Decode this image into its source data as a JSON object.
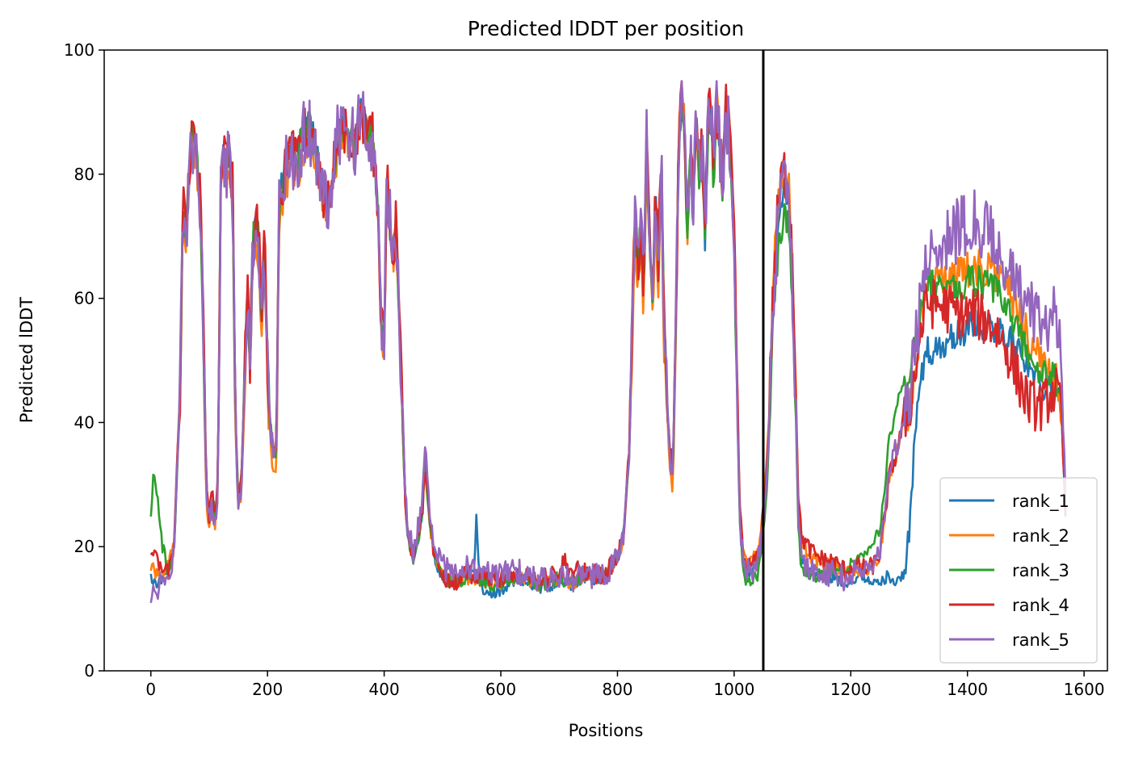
{
  "chart_data": {
    "type": "line",
    "title": "Predicted lDDT per position",
    "xlabel": "Positions",
    "ylabel": "Predicted lDDT",
    "xlim": [
      -80,
      1640
    ],
    "ylim": [
      0,
      100
    ],
    "xticks": [
      0,
      200,
      400,
      600,
      800,
      1000,
      1200,
      1400,
      1600
    ],
    "yticks": [
      0,
      20,
      40,
      60,
      80,
      100
    ],
    "grid": false,
    "legend_position": "lower-right",
    "vline_x": 1050,
    "base_profile": [
      [
        0,
        15
      ],
      [
        10,
        14
      ],
      [
        20,
        15
      ],
      [
        30,
        16
      ],
      [
        40,
        20
      ],
      [
        50,
        45
      ],
      [
        55,
        75
      ],
      [
        60,
        70
      ],
      [
        70,
        86
      ],
      [
        75,
        86
      ],
      [
        80,
        80
      ],
      [
        85,
        75
      ],
      [
        90,
        55
      ],
      [
        95,
        30
      ],
      [
        100,
        25
      ],
      [
        105,
        28
      ],
      [
        110,
        25
      ],
      [
        115,
        30
      ],
      [
        120,
        80
      ],
      [
        125,
        84
      ],
      [
        130,
        82
      ],
      [
        135,
        84
      ],
      [
        140,
        78
      ],
      [
        145,
        40
      ],
      [
        150,
        28
      ],
      [
        155,
        30
      ],
      [
        160,
        45
      ],
      [
        165,
        62
      ],
      [
        170,
        50
      ],
      [
        175,
        70
      ],
      [
        180,
        72
      ],
      [
        185,
        70
      ],
      [
        190,
        55
      ],
      [
        195,
        70
      ],
      [
        200,
        50
      ],
      [
        205,
        40
      ],
      [
        210,
        35
      ],
      [
        215,
        35
      ],
      [
        220,
        75
      ],
      [
        230,
        82
      ],
      [
        240,
        84
      ],
      [
        250,
        82
      ],
      [
        260,
        86
      ],
      [
        270,
        88
      ],
      [
        280,
        86
      ],
      [
        290,
        80
      ],
      [
        300,
        75
      ],
      [
        310,
        78
      ],
      [
        320,
        86
      ],
      [
        330,
        88
      ],
      [
        340,
        86
      ],
      [
        350,
        85
      ],
      [
        360,
        90
      ],
      [
        370,
        87
      ],
      [
        380,
        86
      ],
      [
        385,
        80
      ],
      [
        390,
        72
      ],
      [
        395,
        55
      ],
      [
        400,
        52
      ],
      [
        405,
        80
      ],
      [
        410,
        72
      ],
      [
        415,
        66
      ],
      [
        420,
        72
      ],
      [
        425,
        60
      ],
      [
        430,
        45
      ],
      [
        435,
        30
      ],
      [
        440,
        22
      ],
      [
        450,
        18
      ],
      [
        460,
        22
      ],
      [
        465,
        25
      ],
      [
        470,
        33
      ],
      [
        475,
        28
      ],
      [
        480,
        22
      ],
      [
        490,
        17
      ],
      [
        500,
        15
      ],
      [
        520,
        14
      ],
      [
        540,
        15
      ],
      [
        560,
        15
      ],
      [
        580,
        14
      ],
      [
        600,
        14
      ],
      [
        620,
        15
      ],
      [
        640,
        15
      ],
      [
        660,
        14
      ],
      [
        680,
        14
      ],
      [
        700,
        15
      ],
      [
        720,
        14
      ],
      [
        740,
        15
      ],
      [
        760,
        15
      ],
      [
        780,
        15
      ],
      [
        790,
        17
      ],
      [
        800,
        18
      ],
      [
        810,
        22
      ],
      [
        815,
        28
      ],
      [
        820,
        35
      ],
      [
        825,
        55
      ],
      [
        830,
        72
      ],
      [
        835,
        65
      ],
      [
        840,
        72
      ],
      [
        845,
        60
      ],
      [
        850,
        85
      ],
      [
        855,
        70
      ],
      [
        860,
        60
      ],
      [
        865,
        78
      ],
      [
        870,
        65
      ],
      [
        875,
        85
      ],
      [
        880,
        55
      ],
      [
        885,
        45
      ],
      [
        890,
        35
      ],
      [
        895,
        32
      ],
      [
        900,
        55
      ],
      [
        905,
        85
      ],
      [
        910,
        92
      ],
      [
        915,
        88
      ],
      [
        920,
        70
      ],
      [
        925,
        85
      ],
      [
        930,
        75
      ],
      [
        935,
        90
      ],
      [
        940,
        80
      ],
      [
        945,
        85
      ],
      [
        950,
        70
      ],
      [
        955,
        88
      ],
      [
        960,
        90
      ],
      [
        965,
        80
      ],
      [
        970,
        92
      ],
      [
        975,
        85
      ],
      [
        980,
        78
      ],
      [
        985,
        90
      ],
      [
        990,
        88
      ],
      [
        995,
        80
      ],
      [
        1000,
        70
      ],
      [
        1005,
        45
      ],
      [
        1010,
        25
      ],
      [
        1015,
        18
      ],
      [
        1020,
        16
      ],
      [
        1030,
        16
      ],
      [
        1040,
        17
      ],
      [
        1045,
        20
      ],
      [
        1055,
        30
      ],
      [
        1060,
        40
      ],
      [
        1065,
        55
      ],
      [
        1070,
        65
      ],
      [
        1075,
        72
      ],
      [
        1080,
        76
      ],
      [
        1085,
        78
      ],
      [
        1090,
        76
      ],
      [
        1095,
        74
      ],
      [
        1100,
        62
      ],
      [
        1105,
        45
      ],
      [
        1110,
        25
      ],
      [
        1115,
        18
      ],
      [
        1130,
        16
      ],
      [
        1150,
        15
      ],
      [
        1170,
        15
      ],
      [
        1190,
        14
      ],
      [
        1210,
        15
      ],
      [
        1230,
        15
      ],
      [
        1240,
        16
      ],
      [
        1250,
        18
      ],
      [
        1260,
        25
      ],
      [
        1265,
        30
      ],
      [
        1270,
        32
      ],
      [
        1280,
        35
      ],
      [
        1290,
        40
      ],
      [
        1300,
        42
      ],
      [
        1310,
        48
      ],
      [
        1320,
        55
      ],
      [
        1330,
        60
      ],
      [
        1350,
        60
      ],
      [
        1370,
        60
      ],
      [
        1390,
        60
      ],
      [
        1410,
        61
      ],
      [
        1430,
        60
      ],
      [
        1450,
        59
      ],
      [
        1470,
        56
      ],
      [
        1490,
        52
      ],
      [
        1510,
        48
      ],
      [
        1530,
        46
      ],
      [
        1545,
        47
      ],
      [
        1555,
        46
      ],
      [
        1562,
        40
      ],
      [
        1566,
        30
      ],
      [
        1568,
        25
      ]
    ],
    "series": [
      {
        "name": "rank_1",
        "color": "#1f77b4",
        "offsets": [
          [
            0,
            0
          ],
          [
            400,
            0
          ],
          [
            500,
            0
          ],
          [
            555,
            1
          ],
          [
            558,
            10
          ],
          [
            562,
            2
          ],
          [
            570,
            -2
          ],
          [
            600,
            -1
          ],
          [
            800,
            0
          ],
          [
            1230,
            0
          ],
          [
            1240,
            -2
          ],
          [
            1250,
            -4
          ],
          [
            1260,
            -10
          ],
          [
            1270,
            -18
          ],
          [
            1280,
            -20
          ],
          [
            1290,
            -25
          ],
          [
            1300,
            -20
          ],
          [
            1310,
            -10
          ],
          [
            1320,
            -8
          ],
          [
            1340,
            -9
          ],
          [
            1380,
            -6
          ],
          [
            1450,
            -4
          ],
          [
            1500,
            0
          ],
          [
            1568,
            0
          ]
        ],
        "noise_amp": 1.5
      },
      {
        "name": "rank_2",
        "color": "#ff7f0e",
        "offsets": [
          [
            0,
            2
          ],
          [
            100,
            -2
          ],
          [
            150,
            -2
          ],
          [
            200,
            -4
          ],
          [
            400,
            0
          ],
          [
            800,
            0
          ],
          [
            880,
            -5
          ],
          [
            895,
            -3
          ],
          [
            900,
            0
          ],
          [
            1060,
            2
          ],
          [
            1100,
            3
          ],
          [
            1300,
            0
          ],
          [
            1350,
            3
          ],
          [
            1400,
            4
          ],
          [
            1450,
            5
          ],
          [
            1500,
            5
          ],
          [
            1568,
            0
          ]
        ],
        "noise_amp": 2.0
      },
      {
        "name": "rank_3",
        "color": "#2ca02c",
        "offsets": [
          [
            0,
            10
          ],
          [
            5,
            18
          ],
          [
            10,
            15
          ],
          [
            20,
            5
          ],
          [
            30,
            0
          ],
          [
            100,
            0
          ],
          [
            400,
            0
          ],
          [
            800,
            0
          ],
          [
            1060,
            -2
          ],
          [
            1080,
            -5
          ],
          [
            1100,
            -2
          ],
          [
            1250,
            5
          ],
          [
            1280,
            8
          ],
          [
            1300,
            5
          ],
          [
            1350,
            1
          ],
          [
            1400,
            2
          ],
          [
            1500,
            2
          ],
          [
            1568,
            0
          ]
        ],
        "noise_amp": 1.8
      },
      {
        "name": "rank_4",
        "color": "#d62728",
        "offsets": [
          [
            0,
            3
          ],
          [
            10,
            5
          ],
          [
            20,
            0
          ],
          [
            400,
            0
          ],
          [
            700,
            1
          ],
          [
            710,
            3
          ],
          [
            740,
            1
          ],
          [
            800,
            0
          ],
          [
            1060,
            1
          ],
          [
            1100,
            4
          ],
          [
            1300,
            0
          ],
          [
            1350,
            -1
          ],
          [
            1400,
            -3
          ],
          [
            1450,
            -4
          ],
          [
            1500,
            -6
          ],
          [
            1568,
            0
          ]
        ],
        "noise_amp": 2.6
      },
      {
        "name": "rank_5",
        "color": "#9467bd",
        "offsets": [
          [
            0,
            -2
          ],
          [
            10,
            -1
          ],
          [
            400,
            0
          ],
          [
            470,
            2
          ],
          [
            800,
            0
          ],
          [
            1060,
            0
          ],
          [
            1100,
            0
          ],
          [
            1300,
            2
          ],
          [
            1330,
            6
          ],
          [
            1360,
            10
          ],
          [
            1400,
            12
          ],
          [
            1440,
            10
          ],
          [
            1480,
            8
          ],
          [
            1520,
            10
          ],
          [
            1560,
            10
          ],
          [
            1568,
            2
          ]
        ],
        "noise_amp": 3.5
      }
    ]
  }
}
